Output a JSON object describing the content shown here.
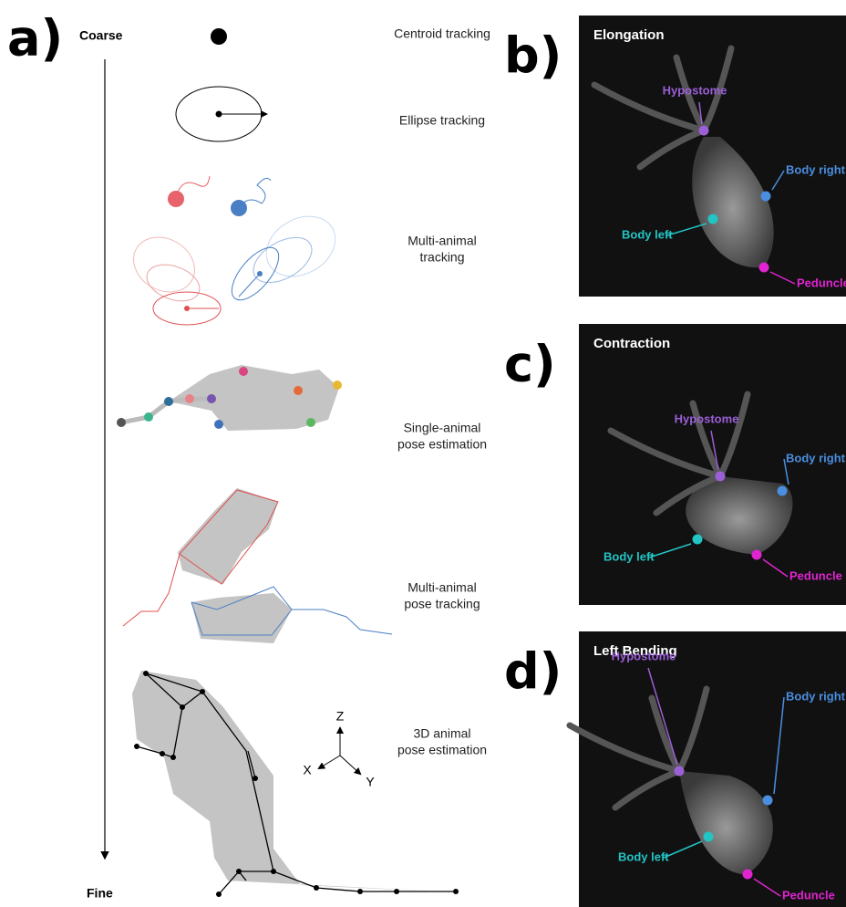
{
  "panel_a": {
    "label": "a)",
    "coarse": "Coarse",
    "fine": "Fine",
    "methods": [
      [
        "Centroid tracking"
      ],
      [
        "Ellipse tracking"
      ],
      [
        "Multi-animal",
        "tracking"
      ],
      [
        "Single-animal",
        "pose estimation"
      ],
      [
        "Multi-animal",
        "pose tracking"
      ],
      [
        "3D animal",
        "pose estimation"
      ]
    ],
    "axes": [
      "Z",
      "X",
      "Y"
    ]
  },
  "panels": [
    {
      "label": "b)",
      "title": "Elongation",
      "points": [
        "Hypostome",
        "Body right",
        "Body left",
        "Peduncle"
      ]
    },
    {
      "label": "c)",
      "title": "Contraction",
      "points": [
        "Hypostome",
        "Body right",
        "Body left",
        "Peduncle"
      ]
    },
    {
      "label": "d)",
      "title": "Left Bending",
      "points": [
        "Hypostome",
        "Body right",
        "Body left",
        "Peduncle"
      ]
    }
  ]
}
